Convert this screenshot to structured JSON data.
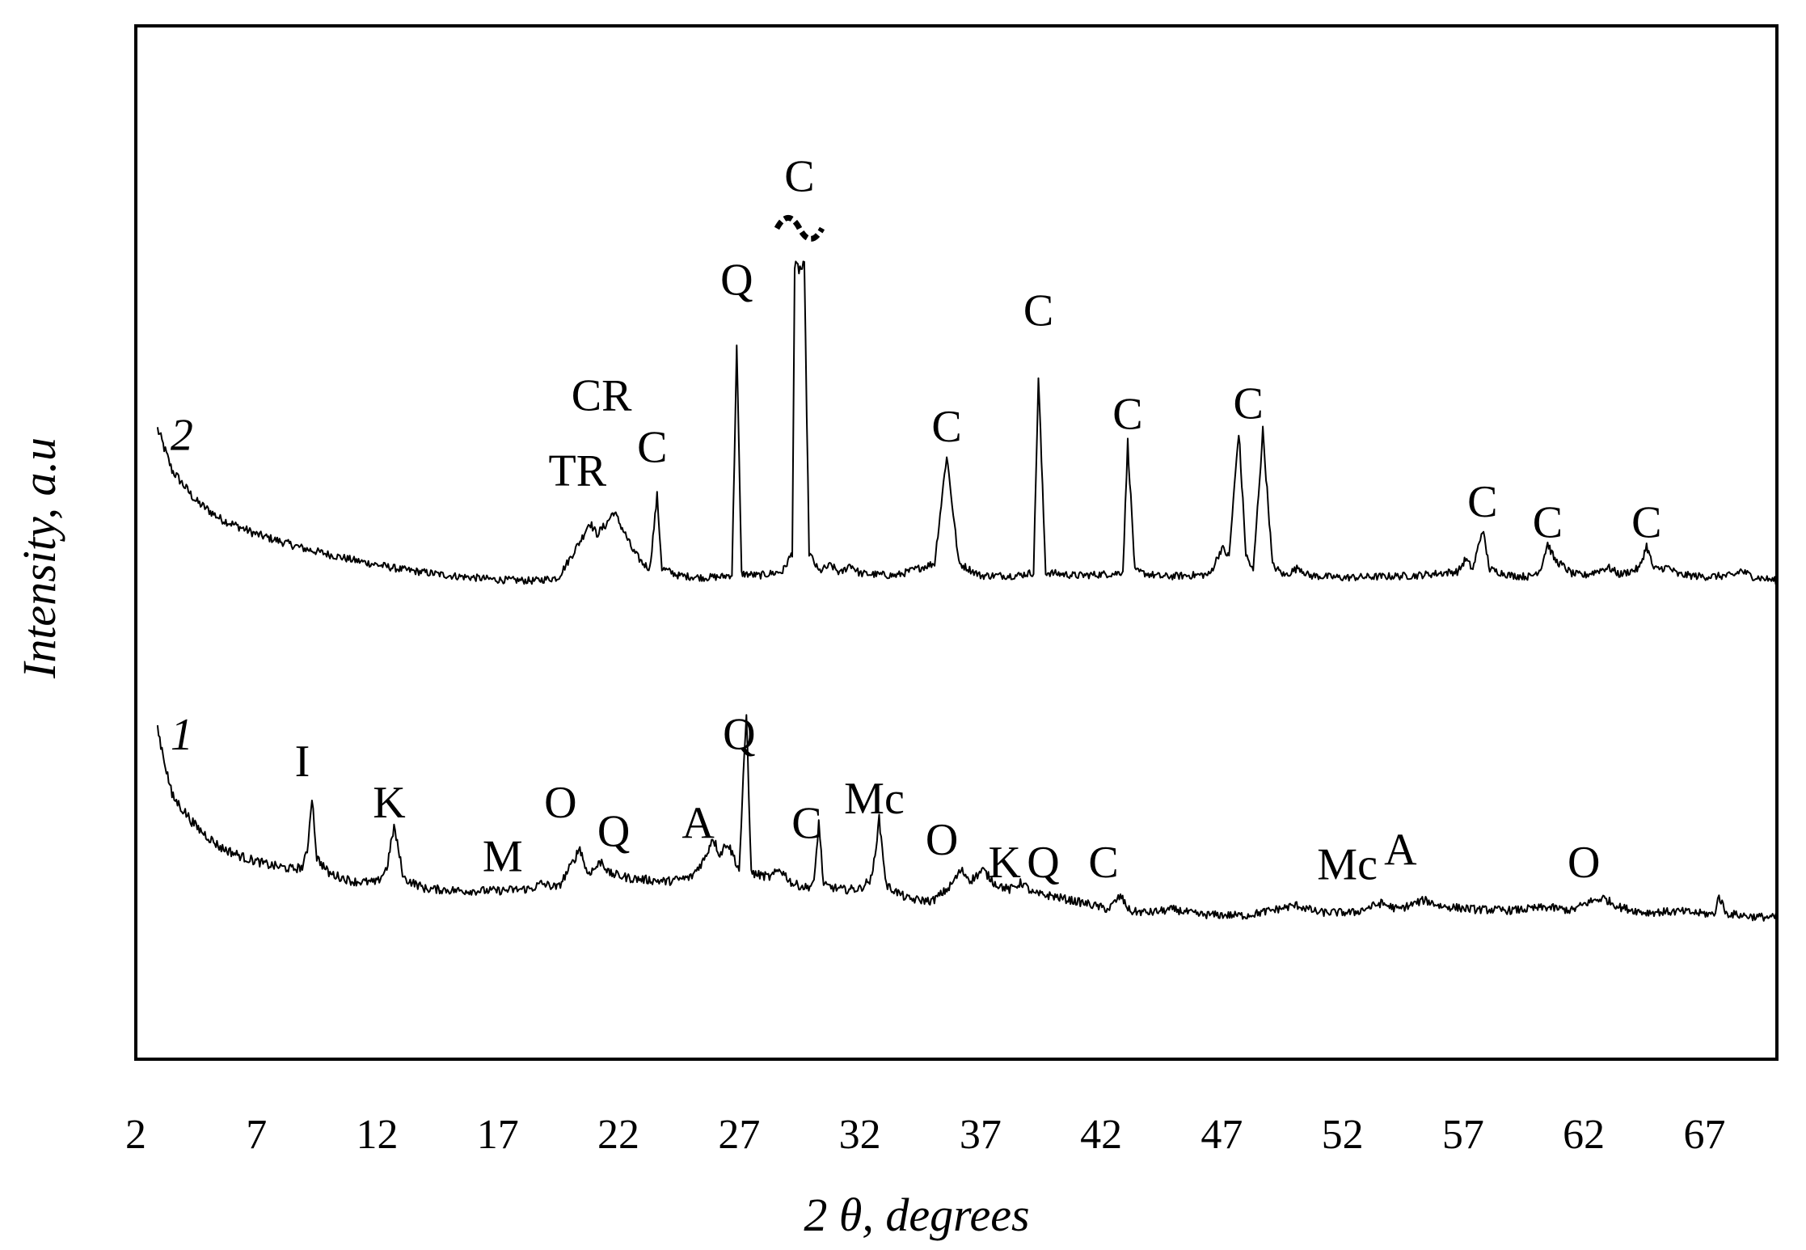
{
  "chart_data": {
    "type": "line",
    "xlabel": "2 θ, degrees",
    "ylabel": "Intensity, a.u",
    "xlim": [
      2,
      70
    ],
    "ylim": [
      0,
      100
    ],
    "x_ticks": [
      2,
      7,
      12,
      17,
      22,
      27,
      32,
      37,
      42,
      47,
      52,
      57,
      62,
      67
    ],
    "grid": false,
    "series": [
      {
        "name": "2",
        "baseline": 46,
        "points": [
          [
            2.9,
            61
          ],
          [
            3.5,
            57
          ],
          [
            4.5,
            54
          ],
          [
            5.5,
            52.3
          ],
          [
            7,
            50.8
          ],
          [
            9,
            49.4
          ],
          [
            11,
            48.3
          ],
          [
            13,
            47.4
          ],
          [
            15,
            46.8
          ],
          [
            17,
            46.4
          ],
          [
            18.5,
            46.3
          ],
          [
            19.5,
            46.6
          ],
          [
            20,
            48.5
          ],
          [
            20.5,
            50.5
          ],
          [
            20.8,
            52
          ],
          [
            21.1,
            50.8
          ],
          [
            21.5,
            51.8
          ],
          [
            21.8,
            53
          ],
          [
            22.2,
            51.2
          ],
          [
            22.6,
            49.2
          ],
          [
            23,
            48
          ],
          [
            23.3,
            47.5
          ],
          [
            23.6,
            54.5
          ],
          [
            23.8,
            47.5
          ],
          [
            24.5,
            46.8
          ],
          [
            25.5,
            46.6
          ],
          [
            26.3,
            46.7
          ],
          [
            26.7,
            46.9
          ],
          [
            26.9,
            69
          ],
          [
            27.1,
            47
          ],
          [
            27.8,
            46.8
          ],
          [
            28.8,
            47.2
          ],
          [
            29.2,
            49
          ],
          [
            29.3,
            76.5
          ],
          [
            29.7,
            76.5
          ],
          [
            29.9,
            49
          ],
          [
            30.3,
            47.2
          ],
          [
            30.8,
            47.8
          ],
          [
            31.2,
            47
          ],
          [
            31.6,
            47.9
          ],
          [
            32,
            47
          ],
          [
            33.5,
            46.8
          ],
          [
            35.1,
            48
          ],
          [
            35.6,
            58.5
          ],
          [
            36.1,
            48
          ],
          [
            37,
            46.8
          ],
          [
            38.5,
            46.8
          ],
          [
            39.2,
            47.1
          ],
          [
            39.4,
            66
          ],
          [
            39.7,
            47.1
          ],
          [
            41,
            46.8
          ],
          [
            42.6,
            47
          ],
          [
            42.9,
            47.2
          ],
          [
            43.1,
            59.7
          ],
          [
            43.4,
            47.2
          ],
          [
            44.5,
            46.7
          ],
          [
            46.5,
            46.9
          ],
          [
            47,
            49.5
          ],
          [
            47.3,
            48.6
          ],
          [
            47.7,
            60.8
          ],
          [
            48,
            48.8
          ],
          [
            48.3,
            47.2
          ],
          [
            48.7,
            60.8
          ],
          [
            49.1,
            47.8
          ],
          [
            49.6,
            46.8
          ],
          [
            50.2,
            47.6
          ],
          [
            50.6,
            46.8
          ],
          [
            52,
            46.6
          ],
          [
            55,
            46.8
          ],
          [
            56.8,
            47.2
          ],
          [
            57.1,
            48.4
          ],
          [
            57.4,
            47.4
          ],
          [
            57.8,
            51.3
          ],
          [
            58.1,
            47.4
          ],
          [
            59,
            46.8
          ],
          [
            59.8,
            46.7
          ],
          [
            60.2,
            47.4
          ],
          [
            60.5,
            49.9
          ],
          [
            60.8,
            48.3
          ],
          [
            61.1,
            47.8
          ],
          [
            61.5,
            47
          ],
          [
            62,
            46.8
          ],
          [
            63,
            47.6
          ],
          [
            63.5,
            46.9
          ],
          [
            64.3,
            47.5
          ],
          [
            64.6,
            49.7
          ],
          [
            64.9,
            47.4
          ],
          [
            65.5,
            47.6
          ],
          [
            65.9,
            46.9
          ],
          [
            67,
            46.7
          ],
          [
            68.2,
            46.8
          ],
          [
            68.5,
            47.3
          ],
          [
            69,
            46.7
          ],
          [
            70,
            46.3
          ]
        ]
      },
      {
        "name": "1",
        "baseline": 11,
        "points": [
          [
            2.9,
            32
          ],
          [
            3.5,
            25.5
          ],
          [
            4.5,
            22.5
          ],
          [
            5.5,
            20.5
          ],
          [
            6.5,
            19.5
          ],
          [
            7.5,
            18.8
          ],
          [
            8.5,
            18.4
          ],
          [
            8.9,
            18.6
          ],
          [
            9.1,
            20
          ],
          [
            9.3,
            25.5
          ],
          [
            9.5,
            19.5
          ],
          [
            10,
            18
          ],
          [
            11,
            17.2
          ],
          [
            12,
            17.1
          ],
          [
            12.4,
            18.5
          ],
          [
            12.7,
            22.5
          ],
          [
            13.1,
            17.5
          ],
          [
            14,
            16.5
          ],
          [
            15.5,
            16.3
          ],
          [
            17,
            16.3
          ],
          [
            18.4,
            16.5
          ],
          [
            18.8,
            17
          ],
          [
            19.5,
            16.6
          ],
          [
            20.1,
            19
          ],
          [
            20.4,
            20.5
          ],
          [
            20.7,
            18
          ],
          [
            21,
            18.4
          ],
          [
            21.3,
            19.2
          ],
          [
            21.6,
            18
          ],
          [
            22.5,
            17.5
          ],
          [
            24,
            17.2
          ],
          [
            25,
            17.6
          ],
          [
            25.6,
            19.5
          ],
          [
            25.9,
            21.5
          ],
          [
            26.2,
            19.8
          ],
          [
            26.5,
            21
          ],
          [
            26.8,
            19.5
          ],
          [
            27,
            18.3
          ],
          [
            27.3,
            33.5
          ],
          [
            27.5,
            18
          ],
          [
            28.3,
            17.6
          ],
          [
            28.7,
            18.4
          ],
          [
            29.2,
            17
          ],
          [
            29.8,
            16.6
          ],
          [
            30.1,
            17
          ],
          [
            30.3,
            23
          ],
          [
            30.5,
            16.8
          ],
          [
            31.3,
            16.4
          ],
          [
            32,
            16.5
          ],
          [
            32.5,
            17.5
          ],
          [
            32.8,
            23.2
          ],
          [
            33.1,
            16.8
          ],
          [
            34,
            15.5
          ],
          [
            35,
            15.3
          ],
          [
            35.7,
            16.6
          ],
          [
            36.2,
            18.3
          ],
          [
            36.6,
            17.3
          ],
          [
            37.1,
            18.3
          ],
          [
            37.6,
            17
          ],
          [
            38.2,
            16.4
          ],
          [
            38.7,
            17.1
          ],
          [
            39.2,
            16
          ],
          [
            40,
            15.8
          ],
          [
            40.5,
            15.5
          ],
          [
            41.5,
            15
          ],
          [
            42.3,
            14.5
          ],
          [
            42.8,
            15.8
          ],
          [
            43.2,
            14.3
          ],
          [
            44,
            14.2
          ],
          [
            45,
            14.5
          ],
          [
            46,
            14
          ],
          [
            48,
            13.9
          ],
          [
            50.1,
            14.9
          ],
          [
            51,
            14.2
          ],
          [
            52.5,
            14.2
          ],
          [
            53.6,
            15.1
          ],
          [
            54.3,
            14.5
          ],
          [
            55.4,
            15.4
          ],
          [
            56.1,
            14.8
          ],
          [
            57.5,
            14.5
          ],
          [
            59,
            14.4
          ],
          [
            60.5,
            14.7
          ],
          [
            61.5,
            14.4
          ],
          [
            62.2,
            15.2
          ],
          [
            62.8,
            15.6
          ],
          [
            63.5,
            14.7
          ],
          [
            64.5,
            14.2
          ],
          [
            66,
            14.3
          ],
          [
            67.4,
            14
          ],
          [
            67.6,
            15.8
          ],
          [
            67.9,
            14.1
          ],
          [
            69,
            13.8
          ],
          [
            70,
            13.7
          ]
        ]
      }
    ],
    "annotations": [
      {
        "series": "2",
        "text": "TR",
        "x": 20.3,
        "y": 55.5
      },
      {
        "series": "2",
        "text": "CR",
        "x": 21.3,
        "y": 62.8
      },
      {
        "series": "2",
        "text": "C",
        "x": 23.4,
        "y": 57.8
      },
      {
        "series": "2",
        "text": "Q",
        "x": 26.9,
        "y": 74
      },
      {
        "series": "2",
        "text": "C",
        "x": 29.5,
        "y": 84
      },
      {
        "series": "2",
        "text": "C",
        "x": 35.6,
        "y": 59.8
      },
      {
        "series": "2",
        "text": "C",
        "x": 39.4,
        "y": 71
      },
      {
        "series": "2",
        "text": "C",
        "x": 43.1,
        "y": 61
      },
      {
        "series": "2",
        "text": "C",
        "x": 48.1,
        "y": 62
      },
      {
        "series": "2",
        "text": "C",
        "x": 57.8,
        "y": 52.5
      },
      {
        "series": "2",
        "text": "C",
        "x": 60.5,
        "y": 50.5
      },
      {
        "series": "2",
        "text": "C",
        "x": 64.6,
        "y": 50.5
      },
      {
        "series": "1",
        "text": "I",
        "x": 8.9,
        "y": 27.4
      },
      {
        "series": "1",
        "text": "K",
        "x": 12.5,
        "y": 23.4
      },
      {
        "series": "1",
        "text": "M",
        "x": 17.2,
        "y": 18.2
      },
      {
        "series": "1",
        "text": "O",
        "x": 19.6,
        "y": 23.4
      },
      {
        "series": "1",
        "text": "Q",
        "x": 21.8,
        "y": 20.6
      },
      {
        "series": "1",
        "text": "A",
        "x": 25.3,
        "y": 21.4
      },
      {
        "series": "1",
        "text": "Q",
        "x": 27,
        "y": 30
      },
      {
        "series": "1",
        "text": "C",
        "x": 29.8,
        "y": 21.4
      },
      {
        "series": "1",
        "text": "Mc",
        "x": 32.6,
        "y": 23.8
      },
      {
        "series": "1",
        "text": "O",
        "x": 35.4,
        "y": 19.8
      },
      {
        "series": "1",
        "text": "K",
        "x": 38,
        "y": 17.6
      },
      {
        "series": "1",
        "text": "Q",
        "x": 39.6,
        "y": 17.6
      },
      {
        "series": "1",
        "text": "C",
        "x": 42.1,
        "y": 17.6
      },
      {
        "series": "1",
        "text": "Mc",
        "x": 52.2,
        "y": 17.4
      },
      {
        "series": "1",
        "text": "A",
        "x": 54.4,
        "y": 18.8
      },
      {
        "series": "1",
        "text": "O",
        "x": 62,
        "y": 17.6
      }
    ],
    "break_marker_x": 29.5
  }
}
